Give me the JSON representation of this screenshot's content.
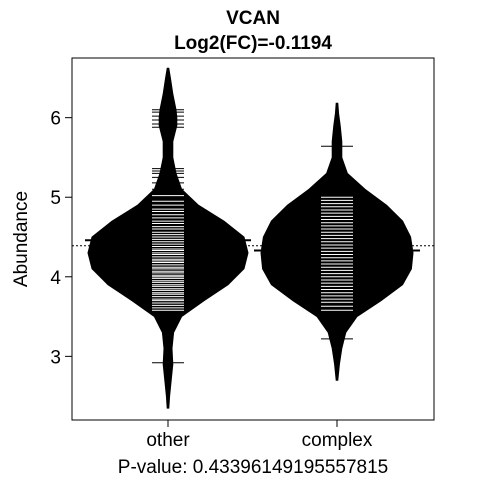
{
  "chart_data": {
    "type": "beanplot",
    "title": "VCAN",
    "subtitle": "Log2(FC)=-0.1194",
    "ylabel": "Abundance",
    "xlabel": "P-value: 0.43396149195557815",
    "categories": [
      "other",
      "complex"
    ],
    "ylim": [
      2.2,
      6.75
    ],
    "yticks": [
      3,
      4,
      5,
      6
    ],
    "overall_mean": 4.39,
    "groups": [
      {
        "name": "other",
        "mean": 4.46,
        "range": [
          2.35,
          6.62
        ],
        "density": [
          [
            2.35,
            0.01
          ],
          [
            2.5,
            0.02
          ],
          [
            2.7,
            0.04
          ],
          [
            2.9,
            0.06
          ],
          [
            3.1,
            0.05
          ],
          [
            3.3,
            0.07
          ],
          [
            3.5,
            0.17
          ],
          [
            3.7,
            0.45
          ],
          [
            3.9,
            0.75
          ],
          [
            4.1,
            0.95
          ],
          [
            4.3,
            1.0
          ],
          [
            4.5,
            0.95
          ],
          [
            4.7,
            0.7
          ],
          [
            4.9,
            0.38
          ],
          [
            5.1,
            0.17
          ],
          [
            5.3,
            0.1
          ],
          [
            5.5,
            0.06
          ],
          [
            5.7,
            0.06
          ],
          [
            5.9,
            0.11
          ],
          [
            6.0,
            0.11
          ],
          [
            6.1,
            0.1
          ],
          [
            6.3,
            0.06
          ],
          [
            6.5,
            0.03
          ],
          [
            6.62,
            0.01
          ]
        ],
        "points": [
          2.92,
          3.58,
          3.61,
          3.64,
          3.67,
          3.7,
          3.72,
          3.75,
          3.78,
          3.8,
          3.83,
          3.85,
          3.88,
          3.9,
          3.93,
          3.95,
          3.98,
          4.0,
          4.02,
          4.05,
          4.07,
          4.1,
          4.12,
          4.15,
          4.18,
          4.2,
          4.22,
          4.25,
          4.28,
          4.3,
          4.33,
          4.35,
          4.38,
          4.41,
          4.44,
          4.47,
          4.5,
          4.53,
          4.56,
          4.6,
          4.63,
          4.67,
          4.7,
          4.74,
          4.78,
          4.82,
          4.85,
          4.9,
          4.95,
          5.02,
          5.1,
          5.18,
          5.25,
          5.3,
          5.33,
          5.36,
          5.88,
          5.92,
          5.97,
          6.02,
          6.07,
          6.1
        ]
      },
      {
        "name": "complex",
        "mean": 4.33,
        "range": [
          2.7,
          6.18
        ],
        "density": [
          [
            2.7,
            0.01
          ],
          [
            2.9,
            0.03
          ],
          [
            3.1,
            0.06
          ],
          [
            3.3,
            0.11
          ],
          [
            3.5,
            0.25
          ],
          [
            3.7,
            0.55
          ],
          [
            3.9,
            0.82
          ],
          [
            4.1,
            0.93
          ],
          [
            4.3,
            0.95
          ],
          [
            4.5,
            0.92
          ],
          [
            4.7,
            0.82
          ],
          [
            4.9,
            0.62
          ],
          [
            5.1,
            0.35
          ],
          [
            5.3,
            0.13
          ],
          [
            5.5,
            0.06
          ],
          [
            5.7,
            0.06
          ],
          [
            5.9,
            0.04
          ],
          [
            6.05,
            0.02
          ],
          [
            6.18,
            0.01
          ]
        ],
        "points": [
          3.22,
          3.58,
          3.63,
          3.68,
          3.72,
          3.76,
          3.8,
          3.84,
          3.88,
          3.92,
          3.96,
          4.0,
          4.04,
          4.08,
          4.12,
          4.16,
          4.2,
          4.24,
          4.28,
          4.32,
          4.36,
          4.4,
          4.44,
          4.48,
          4.52,
          4.56,
          4.6,
          4.64,
          4.68,
          4.72,
          4.76,
          4.8,
          4.84,
          4.88,
          4.92,
          4.96,
          5.0,
          5.64
        ]
      }
    ]
  }
}
